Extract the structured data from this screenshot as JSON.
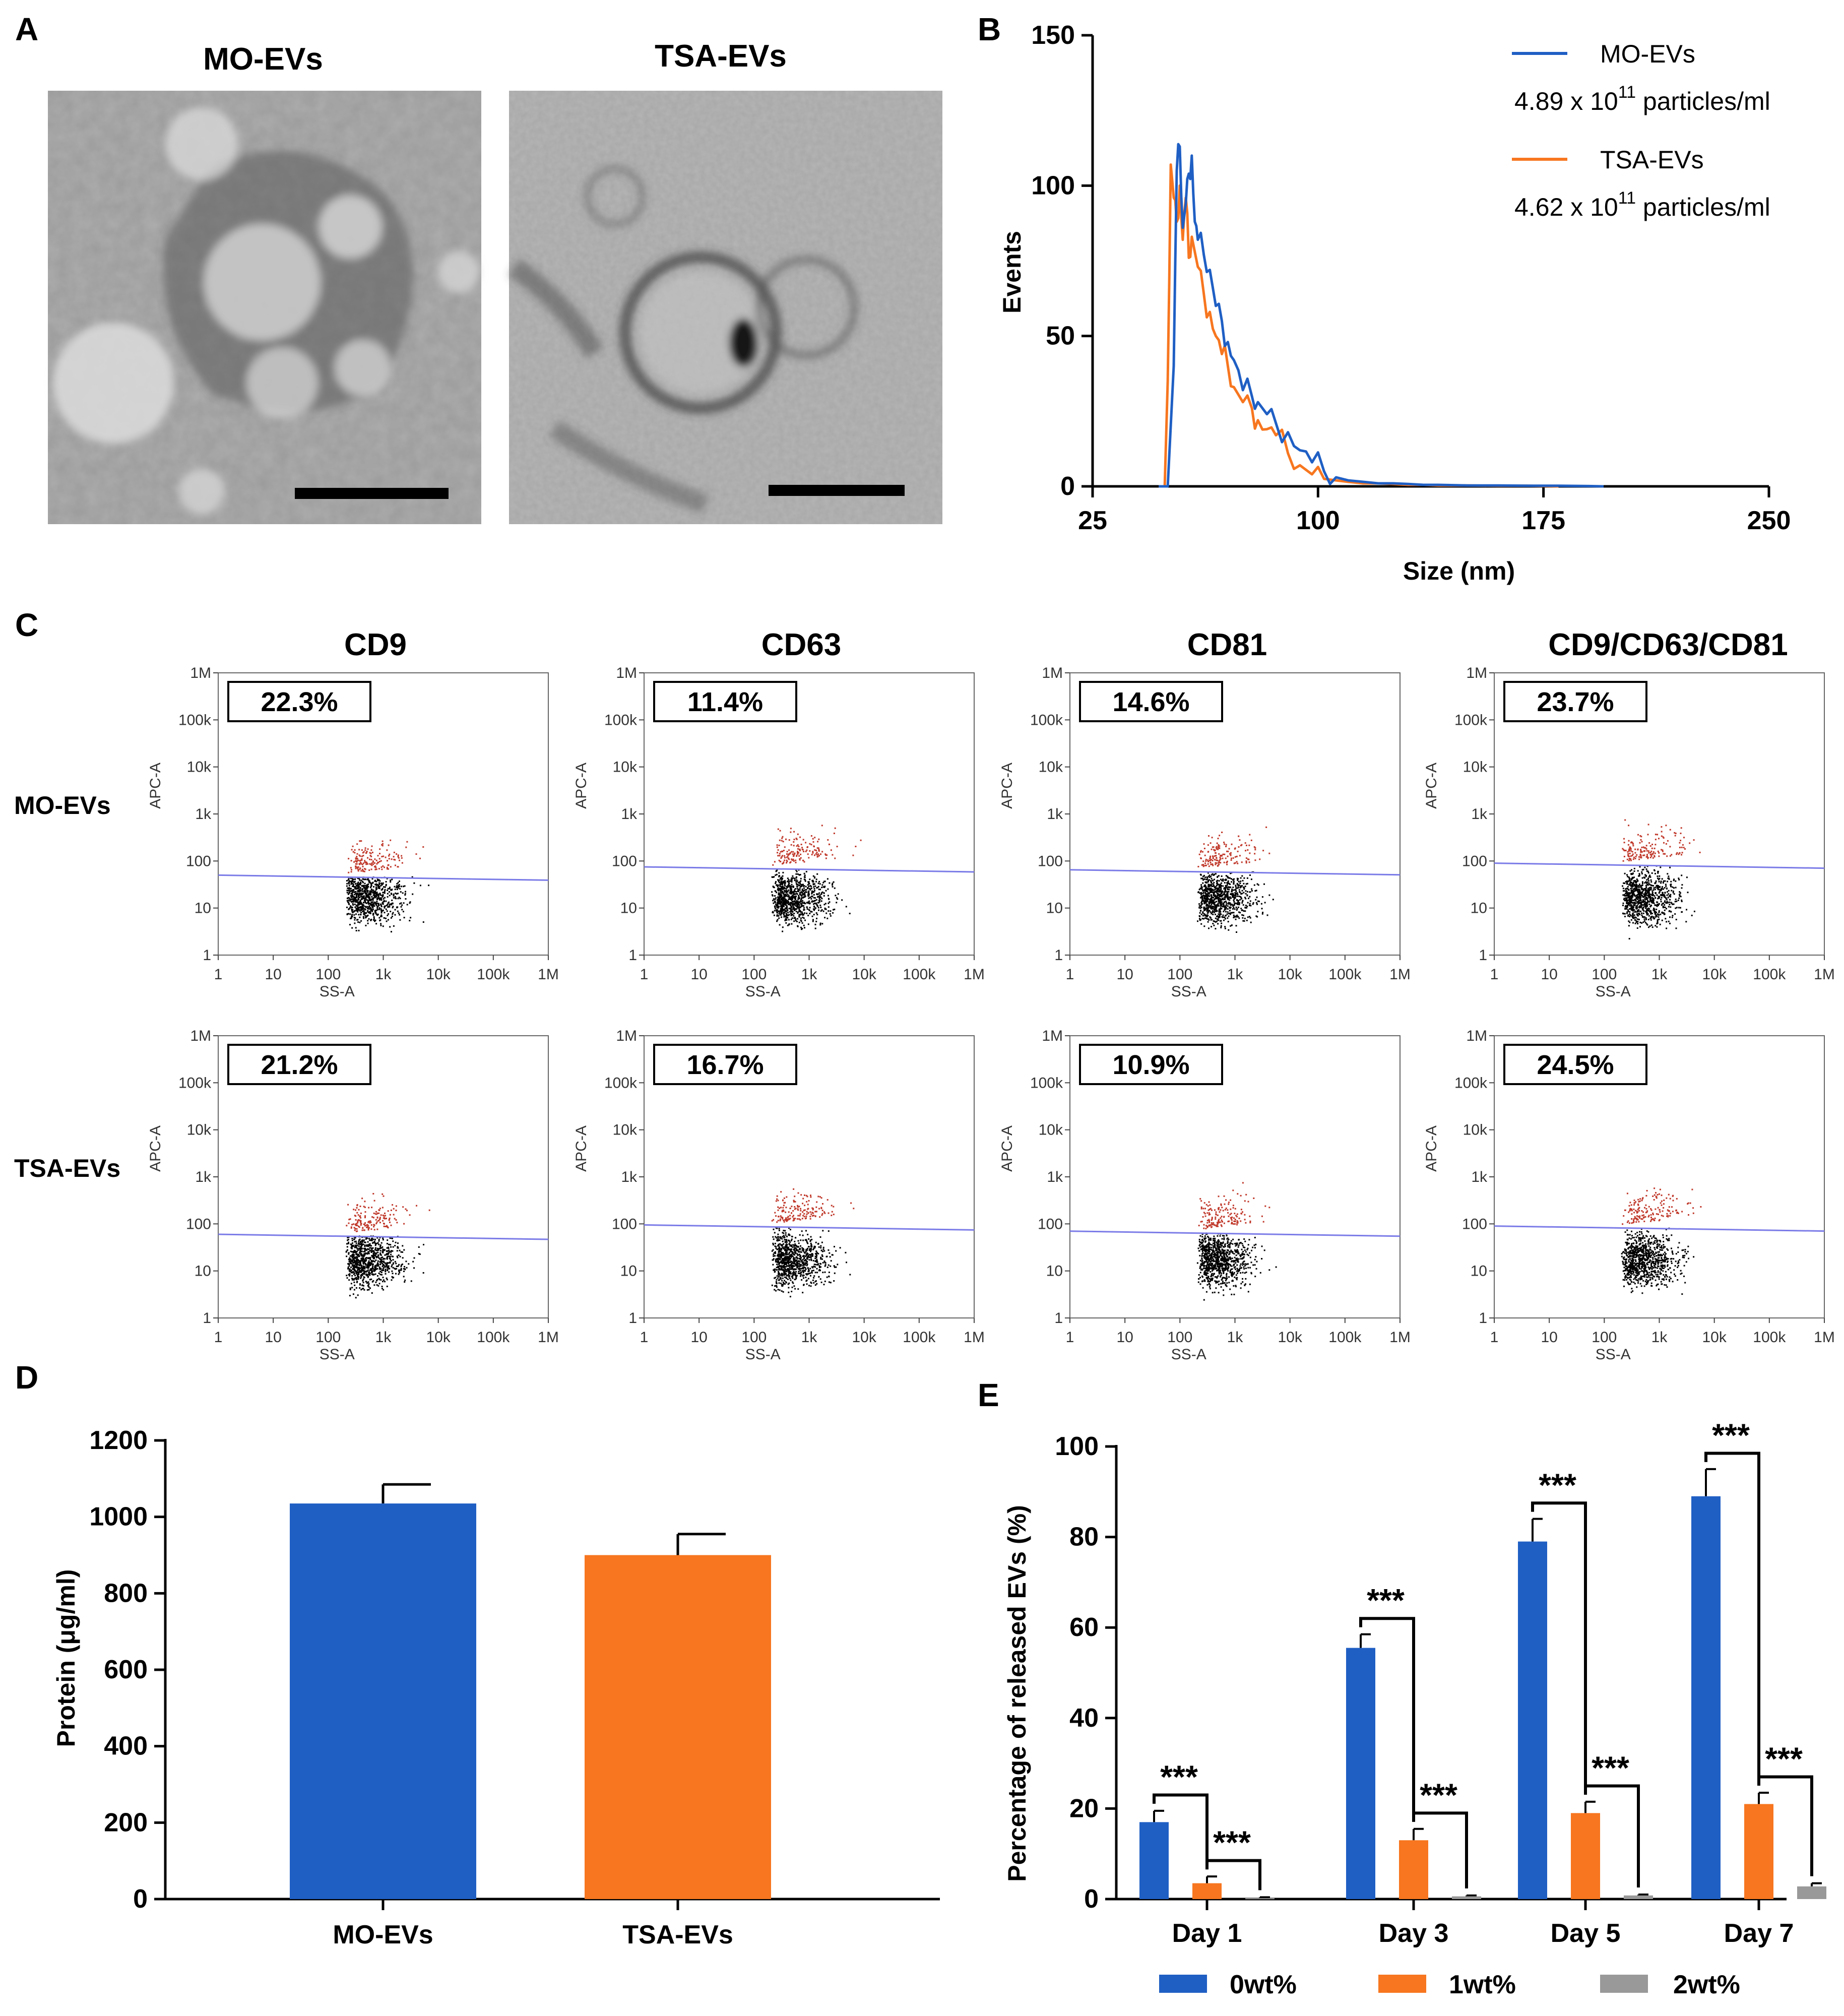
{
  "colors": {
    "mo": "#1f5fc4",
    "tsa": "#f7761f",
    "gray": "#999999",
    "gate": "#7b7be8",
    "pos": "#c0392b",
    "neg": "#000000",
    "em_mo_bg": "#9b9b9b",
    "em_tsa_bg": "#a7a7a7"
  },
  "panel_labels": {
    "a": "A",
    "b": "B",
    "c": "C",
    "d": "D",
    "e": "E"
  },
  "panel_a": {
    "images": [
      {
        "title": "MO-EVs",
        "icon": "tem-micrograph-icon",
        "desc": ""
      },
      {
        "title": "TSA-EVs",
        "icon": "tem-micrograph-icon",
        "desc": ""
      }
    ]
  },
  "chart_data": [
    {
      "id": "B",
      "type": "line",
      "title": "",
      "xlabel": "Size (nm)",
      "ylabel": "Events",
      "xlim": [
        25,
        250
      ],
      "ylim": [
        0,
        150
      ],
      "xticks": [
        25,
        100,
        175,
        250
      ],
      "yticks": [
        0,
        50,
        100,
        150
      ],
      "series": [
        {
          "name": "MO-EVs",
          "annotation_pre": "4.89 x 10",
          "annotation_sup": "11",
          "annotation_post": " particles/ml",
          "x": [
            47,
            50,
            52,
            53,
            54,
            55,
            56,
            57,
            58,
            59,
            60,
            62,
            64,
            66,
            68,
            70,
            72,
            75,
            78,
            80,
            83,
            86,
            90,
            94,
            98,
            102,
            106,
            110,
            115,
            120,
            125,
            130,
            135,
            140,
            150,
            160,
            170,
            180,
            190,
            195
          ],
          "y": [
            0,
            0,
            40,
            105,
            113,
            86,
            94,
            104,
            110,
            88,
            82,
            77,
            72,
            60,
            55,
            48,
            42,
            32,
            30,
            28,
            24,
            21,
            18,
            12,
            8,
            5,
            3,
            2,
            1.5,
            1,
            1,
            0.8,
            0.5,
            0.5,
            0.3,
            0.3,
            0.2,
            0.2,
            0.1,
            0
          ]
        },
        {
          "name": "TSA-EVs",
          "annotation_pre": "4.62 x 10",
          "annotation_sup": "11",
          "annotation_post": " particles/ml",
          "x": [
            47,
            49,
            50,
            51,
            52,
            53,
            54,
            55,
            56,
            57,
            58,
            60,
            62,
            64,
            66,
            68,
            70,
            72,
            75,
            78,
            80,
            83,
            86,
            90,
            94,
            98,
            102,
            106,
            110,
            115,
            120,
            125,
            130,
            135,
            140,
            150,
            160,
            170,
            180
          ],
          "y": [
            0,
            0,
            35,
            107,
            96,
            88,
            100,
            82,
            96,
            76,
            83,
            73,
            64,
            58,
            50,
            44,
            40,
            33,
            28,
            26,
            22,
            19,
            17,
            11,
            7,
            4,
            2.5,
            2,
            1.5,
            1,
            1,
            0.8,
            0.5,
            0.5,
            0.3,
            0.3,
            0.2,
            0.2,
            0
          ]
        }
      ]
    },
    {
      "id": "D",
      "type": "bar",
      "title": "",
      "xlabel": "",
      "ylabel": "Protein (μg/ml)",
      "ylim": [
        0,
        1200
      ],
      "yticks": [
        0,
        200,
        400,
        600,
        800,
        1000,
        1200
      ],
      "categories": [
        "MO-EVs",
        "TSA-EVs"
      ],
      "values": [
        1035,
        900
      ],
      "errors": [
        50,
        55
      ]
    },
    {
      "id": "E",
      "type": "bar",
      "title": "",
      "xlabel": "",
      "ylabel": "Percentage of released EVs (%)",
      "ylim": [
        0,
        100
      ],
      "yticks": [
        0,
        20,
        40,
        60,
        80,
        100
      ],
      "categories": [
        "Day 1",
        "Day 3",
        "Day 5",
        "Day 7"
      ],
      "series": [
        {
          "name": "0wt%",
          "values": [
            17,
            55.5,
            79,
            89
          ],
          "errors": [
            2.5,
            3,
            5,
            6
          ]
        },
        {
          "name": "1wt%",
          "values": [
            3.5,
            13,
            19,
            21
          ],
          "errors": [
            1.5,
            2.5,
            2.5,
            2.5
          ]
        },
        {
          "name": "2wt%",
          "values": [
            0.2,
            0.6,
            0.8,
            2.8
          ],
          "errors": [
            0.2,
            0.2,
            0.2,
            0.7
          ]
        }
      ],
      "significance": [
        {
          "category": 0,
          "from": 0,
          "to": 1,
          "label": "***"
        },
        {
          "category": 0,
          "from": 1,
          "to": 2,
          "label": "***"
        },
        {
          "category": 1,
          "from": 0,
          "to": 1,
          "label": "***"
        },
        {
          "category": 1,
          "from": 1,
          "to": 2,
          "label": "***"
        },
        {
          "category": 2,
          "from": 0,
          "to": 1,
          "label": "***"
        },
        {
          "category": 2,
          "from": 1,
          "to": 2,
          "label": "***"
        },
        {
          "category": 3,
          "from": 0,
          "to": 1,
          "label": "***"
        },
        {
          "category": 3,
          "from": 1,
          "to": 2,
          "label": "***"
        }
      ]
    }
  ],
  "panel_c": {
    "col_headers": [
      "CD9",
      "CD63",
      "CD81",
      "CD9/CD63/CD81"
    ],
    "row_labels": [
      "MO-EVs",
      "TSA-EVs"
    ],
    "x_axis_label": "SS-A",
    "y_axis_label": "APC-A",
    "ticks": [
      "1",
      "10",
      "100",
      "1k",
      "10k",
      "100k",
      "1M"
    ],
    "percents": [
      [
        "22.3%",
        "11.4%",
        "14.6%",
        "23.7%"
      ],
      [
        "21.2%",
        "16.7%",
        "10.9%",
        "24.5%"
      ]
    ],
    "gate_levels": [
      [
        50,
        75,
        65,
        90
      ],
      [
        60,
        95,
        70,
        90
      ]
    ]
  }
}
